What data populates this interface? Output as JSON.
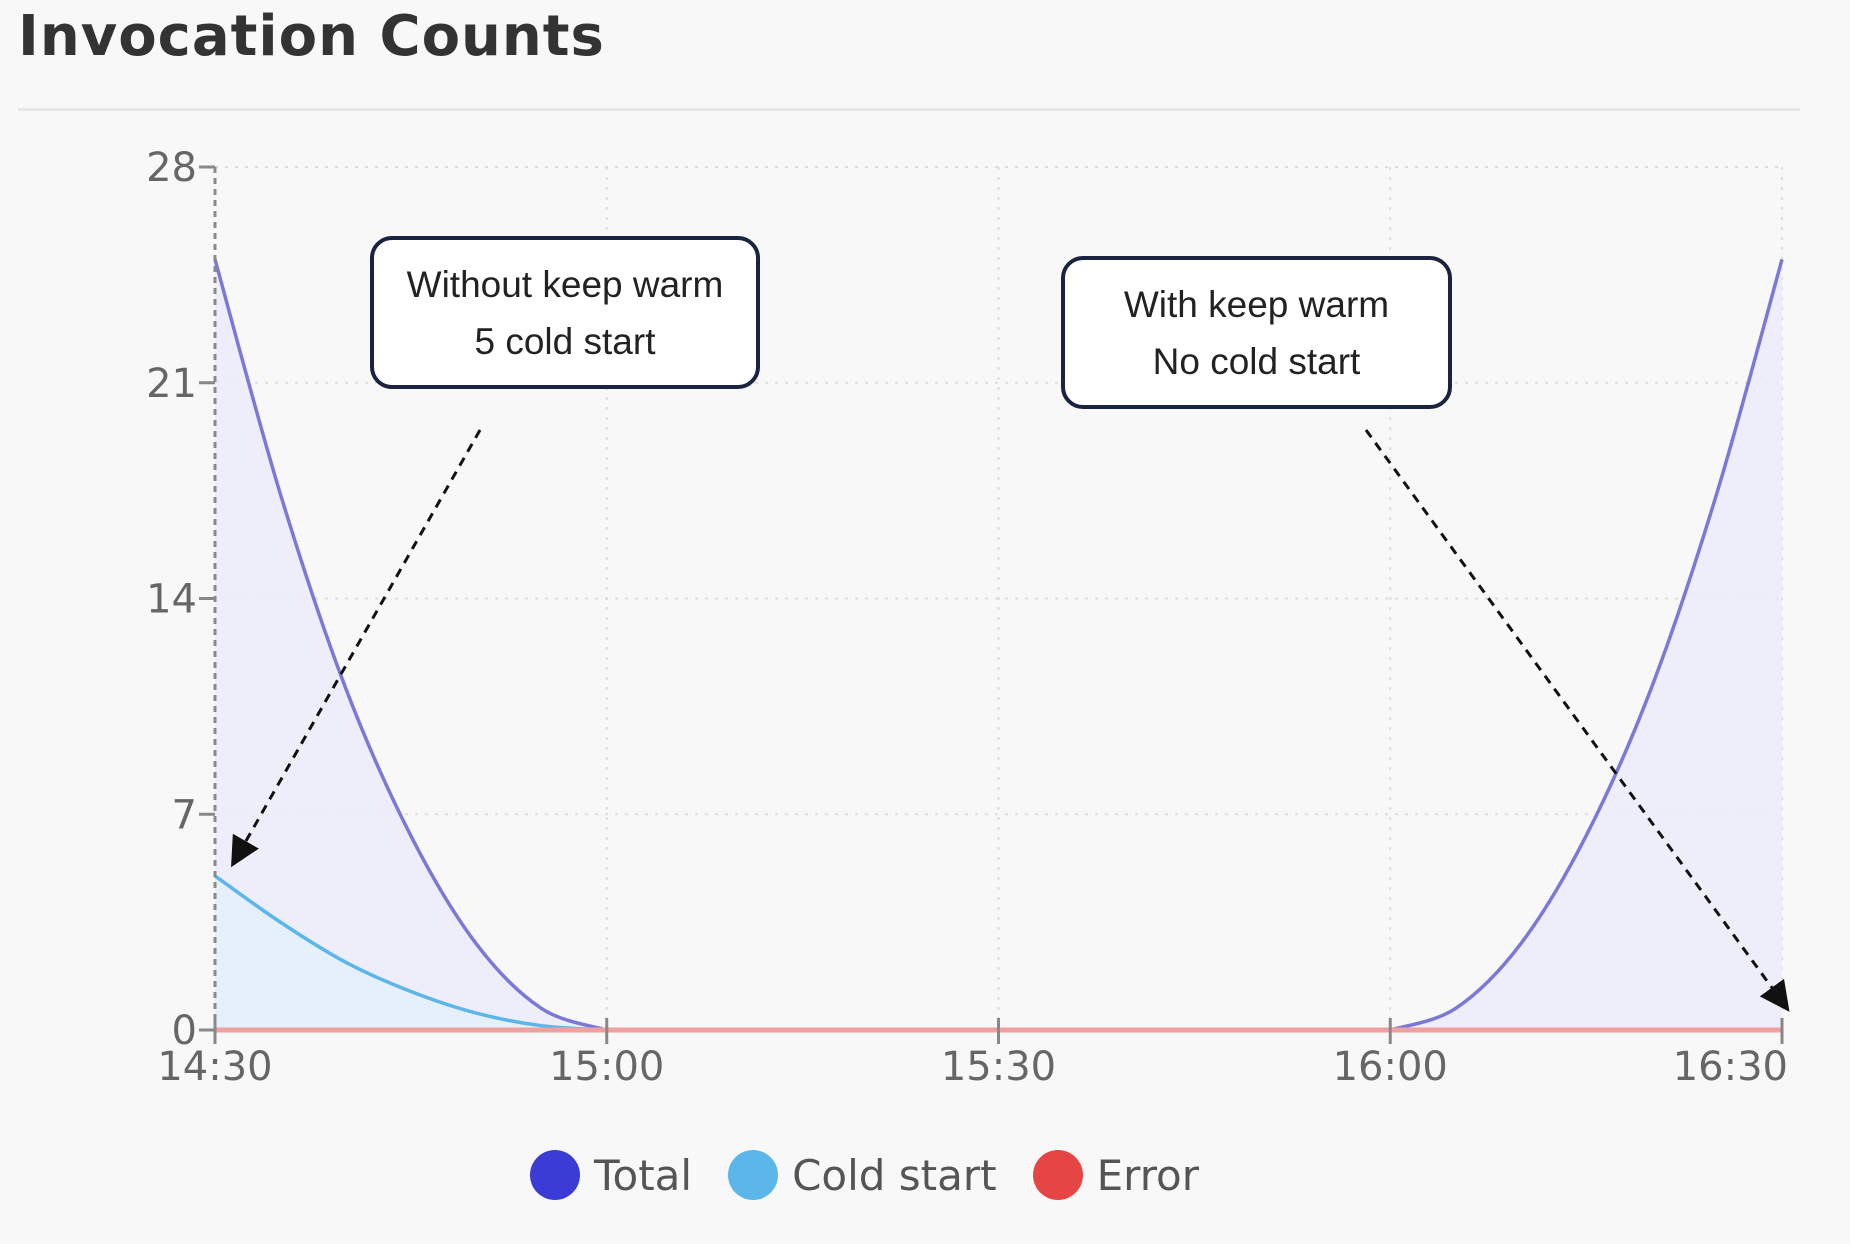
{
  "title": "Invocation Counts",
  "annotations": [
    {
      "id": "without",
      "line1": "Without keep warm",
      "line2": "5 cold start"
    },
    {
      "id": "with",
      "line1": "With keep warm",
      "line2": "No cold start"
    }
  ],
  "legend": [
    {
      "label": "Total",
      "color": "#3b3bd6"
    },
    {
      "label": "Cold start",
      "color": "#5bb6ea"
    },
    {
      "label": "Error",
      "color": "#e64545"
    }
  ],
  "chart_data": {
    "type": "line",
    "x_ticks": [
      "14:30",
      "15:00",
      "15:30",
      "16:00",
      "16:30"
    ],
    "y_ticks": [
      0,
      7,
      14,
      21,
      28
    ],
    "ylim": [
      0,
      28
    ],
    "xlim": [
      "14:30",
      "16:30"
    ],
    "grid": true,
    "legend_position": "bottom",
    "series": [
      {
        "name": "Total",
        "color": "#7b78d8",
        "fill": "#ecebfa",
        "points": [
          [
            "14:30",
            25
          ],
          [
            "14:35",
            17.4
          ],
          [
            "14:40",
            11.1
          ],
          [
            "14:45",
            6.3
          ],
          [
            "14:50",
            2.8
          ],
          [
            "14:55",
            0.7
          ],
          [
            "15:00",
            0
          ],
          [
            "16:00",
            0
          ],
          [
            "16:05",
            0.7
          ],
          [
            "16:10",
            2.8
          ],
          [
            "16:15",
            6.3
          ],
          [
            "16:20",
            11.1
          ],
          [
            "16:25",
            17.4
          ],
          [
            "16:30",
            25
          ]
        ]
      },
      {
        "name": "Cold start",
        "color": "#5bb6ea",
        "fill": "#e3f0fa",
        "points": [
          [
            "14:30",
            5
          ],
          [
            "14:35",
            3.5
          ],
          [
            "14:40",
            2.2
          ],
          [
            "14:45",
            1.25
          ],
          [
            "14:50",
            0.55
          ],
          [
            "14:55",
            0.14
          ],
          [
            "15:00",
            0
          ],
          [
            "16:30",
            0
          ]
        ]
      },
      {
        "name": "Error",
        "color": "#f0a0a0",
        "points": [
          [
            "14:30",
            0
          ],
          [
            "16:30",
            0
          ]
        ]
      }
    ]
  }
}
